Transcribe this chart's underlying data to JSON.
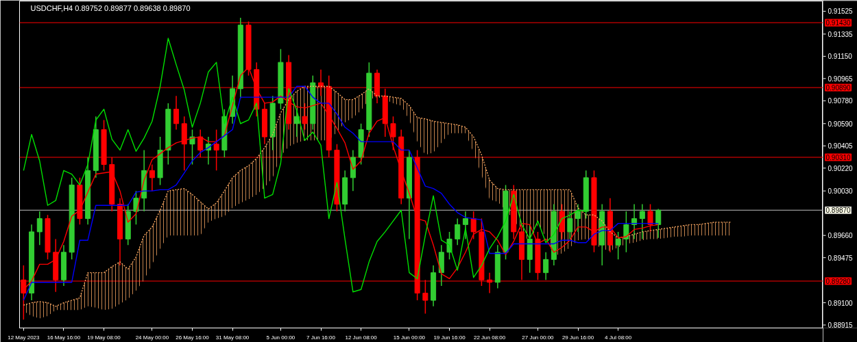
{
  "chart_data": {
    "type": "candlestick",
    "title": "USDCHF,H4  0.89752 0.89877 0.89638 0.89870",
    "categories": [
      "12 May 2023",
      null,
      null,
      null,
      null,
      "16 May 16:00",
      null,
      null,
      null,
      null,
      "19 May 08:00",
      null,
      null,
      null,
      null,
      null,
      "24 May 00:00",
      null,
      null,
      null,
      null,
      "26 May 16:00",
      null,
      null,
      null,
      null,
      "31 May 08:00",
      null,
      null,
      null,
      null,
      null,
      "5 Jun 00:00",
      null,
      null,
      null,
      null,
      "7 Jun 16:00",
      null,
      null,
      null,
      null,
      "12 Jun 08:00",
      null,
      null,
      null,
      null,
      null,
      "15 Jun 00:00",
      null,
      null,
      null,
      null,
      "19 Jun 16:00",
      null,
      null,
      null,
      null,
      "22 Jun 08:00",
      null,
      null,
      null,
      null,
      null,
      "27 Jun 00:00",
      null,
      null,
      null,
      null,
      "29 Jun 16:00",
      null,
      null,
      null,
      null,
      "4 Jul 08:00",
      null,
      null,
      null,
      null,
      null,
      null,
      null,
      null,
      null,
      null,
      null,
      null,
      null,
      null
    ],
    "ohlc": [
      [
        0.8929,
        0.8941,
        0.8896,
        0.8918
      ],
      [
        0.8918,
        0.8975,
        0.8912,
        0.8969
      ],
      [
        0.8969,
        0.8986,
        0.8958,
        0.898
      ],
      [
        0.898,
        0.8983,
        0.8946,
        0.8952
      ],
      [
        0.8952,
        0.8963,
        0.8919,
        0.8929
      ],
      [
        0.8929,
        0.8958,
        0.8924,
        0.8952
      ],
      [
        0.8952,
        0.9014,
        0.8946,
        0.9008
      ],
      [
        0.9008,
        0.9014,
        0.8975,
        0.898
      ],
      [
        0.898,
        0.9031,
        0.8975,
        0.902
      ],
      [
        0.902,
        0.9065,
        0.9014,
        0.9054
      ],
      [
        0.9054,
        0.9062,
        0.902,
        0.9025
      ],
      [
        0.9025,
        0.9031,
        0.8986,
        0.8992
      ],
      [
        0.8992,
        0.8997,
        0.8941,
        0.8963
      ],
      [
        0.8963,
        0.8992,
        0.8958,
        0.8986
      ],
      [
        0.8986,
        0.9003,
        0.8975,
        0.8997
      ],
      [
        0.8997,
        0.9037,
        0.8986,
        0.902
      ],
      [
        0.902,
        0.9025,
        0.9003,
        0.9014
      ],
      [
        0.9014,
        0.9048,
        0.9008,
        0.9037
      ],
      [
        0.9037,
        0.9076,
        0.9025,
        0.9071
      ],
      [
        0.9071,
        0.9082,
        0.9054,
        0.9059
      ],
      [
        0.9059,
        0.9065,
        0.902,
        0.9042
      ],
      [
        0.9042,
        0.9054,
        0.9025,
        0.9048
      ],
      [
        0.9048,
        0.9054,
        0.9031,
        0.9037
      ],
      [
        0.9037,
        0.9048,
        0.9025,
        0.9042
      ],
      [
        0.9042,
        0.9054,
        0.902,
        0.9037
      ],
      [
        0.9037,
        0.9071,
        0.9031,
        0.9065
      ],
      [
        0.9065,
        0.9099,
        0.9059,
        0.9088
      ],
      [
        0.9088,
        0.9147,
        0.908,
        0.9141
      ],
      [
        0.9141,
        0.9144,
        0.9099,
        0.9104
      ],
      [
        0.9104,
        0.911,
        0.9065,
        0.9071
      ],
      [
        0.9071,
        0.9076,
        0.9042,
        0.9048
      ],
      [
        0.9048,
        0.9082,
        0.9037,
        0.9076
      ],
      [
        0.9076,
        0.9121,
        0.9071,
        0.911
      ],
      [
        0.911,
        0.9116,
        0.9054,
        0.9059
      ],
      [
        0.9059,
        0.9071,
        0.9048,
        0.9065
      ],
      [
        0.9065,
        0.9076,
        0.9054,
        0.9059
      ],
      [
        0.9059,
        0.9099,
        0.9054,
        0.9093
      ],
      [
        0.9093,
        0.9104,
        0.9082,
        0.909
      ],
      [
        0.909,
        0.9099,
        0.9031,
        0.9037
      ],
      [
        0.9037,
        0.9042,
        0.8986,
        0.8992
      ],
      [
        0.8992,
        0.902,
        0.8986,
        0.9014
      ],
      [
        0.9014,
        0.9037,
        0.9003,
        0.9031
      ],
      [
        0.9031,
        0.9059,
        0.9025,
        0.9054
      ],
      [
        0.9054,
        0.911,
        0.9048,
        0.9101
      ],
      [
        0.9101,
        0.9104,
        0.9076,
        0.9082
      ],
      [
        0.9082,
        0.9088,
        0.9048,
        0.9059
      ],
      [
        0.9059,
        0.9065,
        0.9037,
        0.9048
      ],
      [
        0.9048,
        0.9054,
        0.8992,
        0.8997
      ],
      [
        0.8997,
        0.9037,
        0.8963,
        0.9031
      ],
      [
        0.9031,
        0.9037,
        0.8912,
        0.8918
      ],
      [
        0.8918,
        0.8929,
        0.8901,
        0.8912
      ],
      [
        0.8912,
        0.8941,
        0.8907,
        0.8935
      ],
      [
        0.8935,
        0.8958,
        0.8924,
        0.8952
      ],
      [
        0.8952,
        0.8969,
        0.8946,
        0.8963
      ],
      [
        0.8963,
        0.898,
        0.8958,
        0.8975
      ],
      [
        0.8975,
        0.8986,
        0.8963,
        0.898
      ],
      [
        0.898,
        0.8986,
        0.8963,
        0.8969
      ],
      [
        0.8969,
        0.898,
        0.8924,
        0.8929
      ],
      [
        0.8929,
        0.8935,
        0.8918,
        0.8927
      ],
      [
        0.8927,
        0.8958,
        0.8922,
        0.8952
      ],
      [
        0.8952,
        0.9008,
        0.8946,
        0.9003
      ],
      [
        0.9003,
        0.9008,
        0.8963,
        0.8969
      ],
      [
        0.8969,
        0.8975,
        0.8929,
        0.8946
      ],
      [
        0.8946,
        0.8975,
        0.8935,
        0.8963
      ],
      [
        0.8963,
        0.8969,
        0.8929,
        0.8935
      ],
      [
        0.8935,
        0.8952,
        0.8929,
        0.8946
      ],
      [
        0.8946,
        0.8992,
        0.8941,
        0.8986
      ],
      [
        0.8986,
        0.8992,
        0.8963,
        0.8969
      ],
      [
        0.8969,
        0.8986,
        0.8963,
        0.898
      ],
      [
        0.898,
        0.8992,
        0.8969,
        0.8986
      ],
      [
        0.8986,
        0.902,
        0.898,
        0.9014
      ],
      [
        0.9014,
        0.902,
        0.8952,
        0.8958
      ],
      [
        0.8958,
        0.8992,
        0.8941,
        0.8986
      ],
      [
        0.8986,
        0.8997,
        0.8952,
        0.8958
      ],
      [
        0.8958,
        0.8969,
        0.8946,
        0.8963
      ],
      [
        0.8963,
        0.8986,
        0.8952,
        0.8975
      ],
      [
        0.8975,
        0.8992,
        0.8963,
        0.898
      ],
      [
        0.898,
        0.8992,
        0.8963,
        0.8986
      ],
      [
        0.8986,
        0.8992,
        0.8969,
        0.8975
      ],
      [
        0.8975,
        0.8988,
        0.8964,
        0.8987
      ],
      null,
      null,
      null,
      null,
      null,
      null,
      null,
      null,
      null
    ],
    "colors": [
      "#ff0000",
      "#32cd32",
      "#32cd32",
      "#ff0000",
      "#ff0000",
      "#32cd32",
      "#32cd32",
      "#ff0000",
      "#32cd32",
      "#32cd32",
      "#ff0000",
      "#ff0000",
      "#ff0000",
      "#32cd32",
      "#32cd32",
      "#32cd32",
      "#ff0000",
      "#32cd32",
      "#32cd32",
      "#ff0000",
      "#ff0000",
      "#32cd32",
      "#ff0000",
      "#32cd32",
      "#ff0000",
      "#32cd32",
      "#32cd32",
      "#32cd32",
      "#ff0000",
      "#ff0000",
      "#ff0000",
      "#32cd32",
      "#32cd32",
      "#ff0000",
      "#32cd32",
      "#ff0000",
      "#32cd32",
      "#ff0000",
      "#ff0000",
      "#ff0000",
      "#32cd32",
      "#32cd32",
      "#32cd32",
      "#32cd32",
      "#ff0000",
      "#ff0000",
      "#ff0000",
      "#ff0000",
      "#32cd32",
      "#ff0000",
      "#ff0000",
      "#32cd32",
      "#32cd32",
      "#32cd32",
      "#32cd32",
      "#32cd32",
      "#ff0000",
      "#ff0000",
      "#ff0000",
      "#32cd32",
      "#32cd32",
      "#ff0000",
      "#ff0000",
      "#32cd32",
      "#ff0000",
      "#32cd32",
      "#32cd32",
      "#ff0000",
      "#32cd32",
      "#32cd32",
      "#32cd32",
      "#ff0000",
      "#32cd32",
      "#ff0000",
      "#32cd32",
      "#32cd32",
      "#32cd32",
      "#32cd32",
      "#ff0000",
      "#32cd32",
      null,
      null,
      null,
      null,
      null,
      null,
      null,
      null,
      null
    ],
    "series": [
      {
        "type": "line",
        "color": "#f4a460",
        "line_style": "dotted",
        "values": [
          0.8908,
          0.891,
          0.8911,
          0.891,
          0.8907,
          0.891,
          0.8912,
          0.8914,
          0.8935,
          0.8935,
          0.8935,
          0.894,
          0.8944,
          0.8938,
          0.8948,
          0.8966,
          0.8973,
          0.8987,
          0.9003,
          0.9004,
          0.9005,
          0.9,
          0.8994,
          0.8988,
          0.8993,
          0.9003,
          0.9014,
          0.902,
          0.9024,
          0.903,
          0.9039,
          0.905,
          0.9068,
          0.9079,
          0.9086,
          0.909,
          0.909,
          0.909,
          0.909,
          0.9085,
          0.9079,
          0.9079,
          0.9083,
          0.9088,
          0.9082,
          0.9082,
          0.9081,
          0.908,
          0.9074,
          0.9064,
          0.9063,
          0.9061,
          0.906,
          0.9059,
          0.9058,
          0.9056,
          0.9048,
          0.9033,
          0.9012,
          0.9005,
          0.9004,
          0.9004,
          0.9004,
          0.9004,
          0.9004,
          0.9004,
          0.9004,
          0.9004,
          0.9004,
          0.8989,
          0.8983,
          0.8983,
          0.8978,
          0.8969,
          0.8964,
          0.8965,
          0.8967,
          0.8969,
          0.897,
          0.8971,
          0.8972,
          0.8973,
          0.8974,
          0.8975,
          0.8975,
          0.8976,
          0.8977,
          0.8977,
          0.8977
        ],
        "upper": [
          0.8908,
          0.891,
          0.8911,
          0.891,
          0.8907,
          0.891,
          0.8912,
          0.8914,
          0.8935,
          0.8935,
          0.8935,
          0.894,
          0.8944,
          0.8938,
          0.8948,
          0.8966,
          0.8973,
          0.8987,
          0.9003,
          0.9004,
          0.9005,
          0.9,
          0.8994,
          0.8988,
          0.8993,
          0.9003,
          0.9014,
          0.902,
          0.9024,
          0.903,
          0.9039,
          0.905,
          0.9068,
          0.9079,
          0.9086,
          0.909,
          0.909,
          0.909,
          0.909,
          0.9085,
          0.9079,
          0.9079,
          0.9083,
          0.9088,
          0.9082,
          0.9082,
          0.9081,
          0.908,
          0.9074,
          0.9064,
          0.9063,
          0.9061,
          0.906,
          0.9059,
          0.9058,
          0.9056,
          0.9048,
          0.9033,
          0.9012,
          0.9005,
          0.9004,
          0.9004,
          0.9004,
          0.9004,
          0.9004,
          0.9004,
          0.9004,
          0.9004,
          0.9004,
          0.8989,
          0.8983,
          0.8983,
          0.8978,
          0.8969,
          0.8964,
          0.8965,
          0.8967,
          0.8969,
          0.897,
          0.8971,
          0.8972,
          0.8973,
          0.8974,
          0.8975,
          0.8975,
          0.8976,
          0.8977,
          0.8977,
          0.8977
        ],
        "lower": [
          0.8903,
          0.8899,
          0.8897,
          0.8899,
          0.8904,
          0.8904,
          0.8904,
          0.8904,
          0.8907,
          0.8906,
          0.8904,
          0.8905,
          0.8909,
          0.8913,
          0.892,
          0.8929,
          0.8942,
          0.8955,
          0.8966,
          0.8966,
          0.8966,
          0.8966,
          0.8966,
          0.8977,
          0.898,
          0.8982,
          0.8989,
          0.8993,
          0.8996,
          0.9,
          0.9006,
          0.9014,
          0.9032,
          0.904,
          0.9043,
          0.9045,
          0.9045,
          0.9045,
          0.9045,
          0.9052,
          0.906,
          0.9064,
          0.907,
          0.9079,
          0.9081,
          0.9079,
          0.9076,
          0.9074,
          0.9062,
          0.9044,
          0.9033,
          0.9035,
          0.9043,
          0.9051,
          0.9051,
          0.9051,
          0.9035,
          0.9016,
          0.8996,
          0.8994,
          0.8987,
          0.8979,
          0.8969,
          0.896,
          0.8975,
          0.8965,
          0.8949,
          0.8951,
          0.8956,
          0.8962,
          0.8963,
          0.8959,
          0.8955,
          0.8953,
          0.8956,
          0.8959,
          0.896,
          0.8962,
          0.8963,
          0.8963,
          0.8964,
          0.8965,
          0.8965,
          0.8966,
          0.8966,
          0.8966,
          0.8966,
          0.8966,
          0.8966
        ]
      },
      {
        "type": "line",
        "color": "#ff0000",
        "values": [
          0.8921,
          0.8928,
          0.8942,
          0.8942,
          0.8946,
          0.8961,
          0.8982,
          0.8987,
          0.9002,
          0.9017,
          0.9018,
          0.9019,
          0.9003,
          0.8977,
          0.8984,
          0.9012,
          0.9029,
          0.9034,
          0.9039,
          0.9043,
          0.9045,
          0.9047,
          0.9048,
          0.9044,
          0.9044,
          0.9049,
          0.9074,
          0.9099,
          0.9106,
          0.9088,
          0.9076,
          0.9077,
          0.9082,
          0.9077,
          0.9073,
          0.9072,
          0.9074,
          0.9076,
          0.9066,
          0.9055,
          0.9043,
          0.9021,
          0.9028,
          0.9051,
          0.9061,
          0.9064,
          0.904,
          0.902,
          0.9001,
          0.898,
          0.8978,
          0.8958,
          0.8934,
          0.893,
          0.8939,
          0.8952,
          0.8967,
          0.8971,
          0.8969,
          0.8962,
          0.895,
          0.8961,
          0.8976,
          0.8975,
          0.8959,
          0.8963,
          0.8952,
          0.8956,
          0.8962,
          0.8973,
          0.8973,
          0.8969,
          0.8973,
          0.8973,
          0.8964,
          0.8965,
          0.8971,
          0.8972,
          0.8974,
          0.8975,
          null,
          null,
          null,
          null,
          null,
          null,
          null,
          null,
          null
        ]
      },
      {
        "type": "line",
        "color": "#0000ff",
        "values": [
          0.8912,
          0.8927,
          0.8927,
          0.8927,
          0.8927,
          0.8927,
          0.8927,
          0.8962,
          0.8962,
          0.8991,
          0.8991,
          0.8991,
          0.8991,
          0.8991,
          0.9002,
          0.9003,
          0.9003,
          0.9004,
          0.9004,
          0.9008,
          0.9018,
          0.9028,
          0.9035,
          0.9039,
          0.9044,
          0.9049,
          0.9054,
          0.9081,
          0.9081,
          0.9081,
          0.9081,
          0.9081,
          0.9081,
          0.9081,
          0.909,
          0.909,
          0.9081,
          0.9076,
          0.9076,
          0.9067,
          0.9056,
          0.9051,
          0.9044,
          0.9044,
          0.9044,
          0.9044,
          0.9044,
          0.9037,
          0.9037,
          0.9022,
          0.9007,
          0.9005,
          0.9001,
          0.8992,
          0.8985,
          0.8981,
          0.898,
          0.8979,
          0.8951,
          0.8951,
          0.8951,
          0.8959,
          0.8959,
          0.8959,
          0.8959,
          0.8959,
          0.8959,
          0.8962,
          0.8962,
          0.896,
          0.896,
          0.8967,
          0.897,
          0.897,
          0.8976,
          0.8976,
          0.8976,
          0.8976,
          0.8976,
          0.8976,
          null,
          null,
          null,
          null,
          null,
          null,
          null,
          null,
          null
        ]
      },
      {
        "type": "line",
        "color": "#00e000",
        "values": [
          0.902,
          0.905,
          0.9028,
          0.8991,
          0.8995,
          0.902,
          0.9017,
          0.9008,
          0.9025,
          0.9062,
          0.9071,
          0.9046,
          0.9037,
          0.9054,
          0.9036,
          0.9047,
          0.9061,
          0.909,
          0.913,
          0.9108,
          0.9087,
          0.9056,
          0.9076,
          0.9102,
          0.911,
          0.9059,
          0.9081,
          0.9059,
          0.9062,
          0.9076,
          0.8997,
          0.9,
          0.9026,
          0.9088,
          0.907,
          0.9045,
          0.9052,
          0.9041,
          0.898,
          0.901,
          0.8963,
          0.8919,
          0.8921,
          0.8944,
          0.8961,
          0.8969,
          0.8978,
          0.8987,
          0.8935,
          0.893,
          0.8966,
          0.8999,
          0.8962,
          0.8958,
          0.8937,
          0.8972,
          0.8931,
          0.8941,
          0.8955,
          0.8965,
          0.8978,
          0.9,
          0.8975,
          0.8963,
          0.8978,
          0.896,
          0.8967,
          0.898,
          0.8983,
          0.8987,
          0.8986,
          null,
          null,
          null,
          null,
          null,
          null,
          null,
          null,
          null,
          null,
          null,
          null,
          null,
          null,
          null,
          null,
          null,
          null
        ]
      }
    ],
    "ylim": [
      0.8889,
      0.9161
    ],
    "yticks": [
      {
        "value": 0.91525,
        "label": "0.91525"
      },
      {
        "value": 0.91335,
        "label": "0.91335"
      },
      {
        "value": 0.9115,
        "label": "0.91150"
      },
      {
        "value": 0.90965,
        "label": "0.90965"
      },
      {
        "value": 0.9078,
        "label": "0.90780"
      },
      {
        "value": 0.9059,
        "label": "0.90590"
      },
      {
        "value": 0.90405,
        "label": "0.90405"
      },
      {
        "value": 0.9022,
        "label": "0.90220"
      },
      {
        "value": 0.9003,
        "label": "0.90030"
      },
      {
        "value": 0.8966,
        "label": "0.89660"
      },
      {
        "value": 0.89475,
        "label": "0.89475"
      },
      {
        "value": 0.891,
        "label": "0.89100"
      },
      {
        "value": 0.88915,
        "label": "0.88915"
      }
    ],
    "ref_lines": [
      {
        "axis": "y",
        "value": 0.9143,
        "label": "0.91430",
        "color": "#ff0000"
      },
      {
        "axis": "y",
        "value": 0.9089,
        "label": "0.90890",
        "color": "#ff0000"
      },
      {
        "axis": "y",
        "value": 0.9031,
        "label": "0.90310",
        "color": "#ff0000"
      },
      {
        "axis": "y",
        "value": 0.8987,
        "label": "0.89870",
        "color": "#c0c0c0"
      },
      {
        "axis": "y",
        "value": 0.8928,
        "label": "0.89280",
        "color": "#ff0000"
      }
    ]
  }
}
